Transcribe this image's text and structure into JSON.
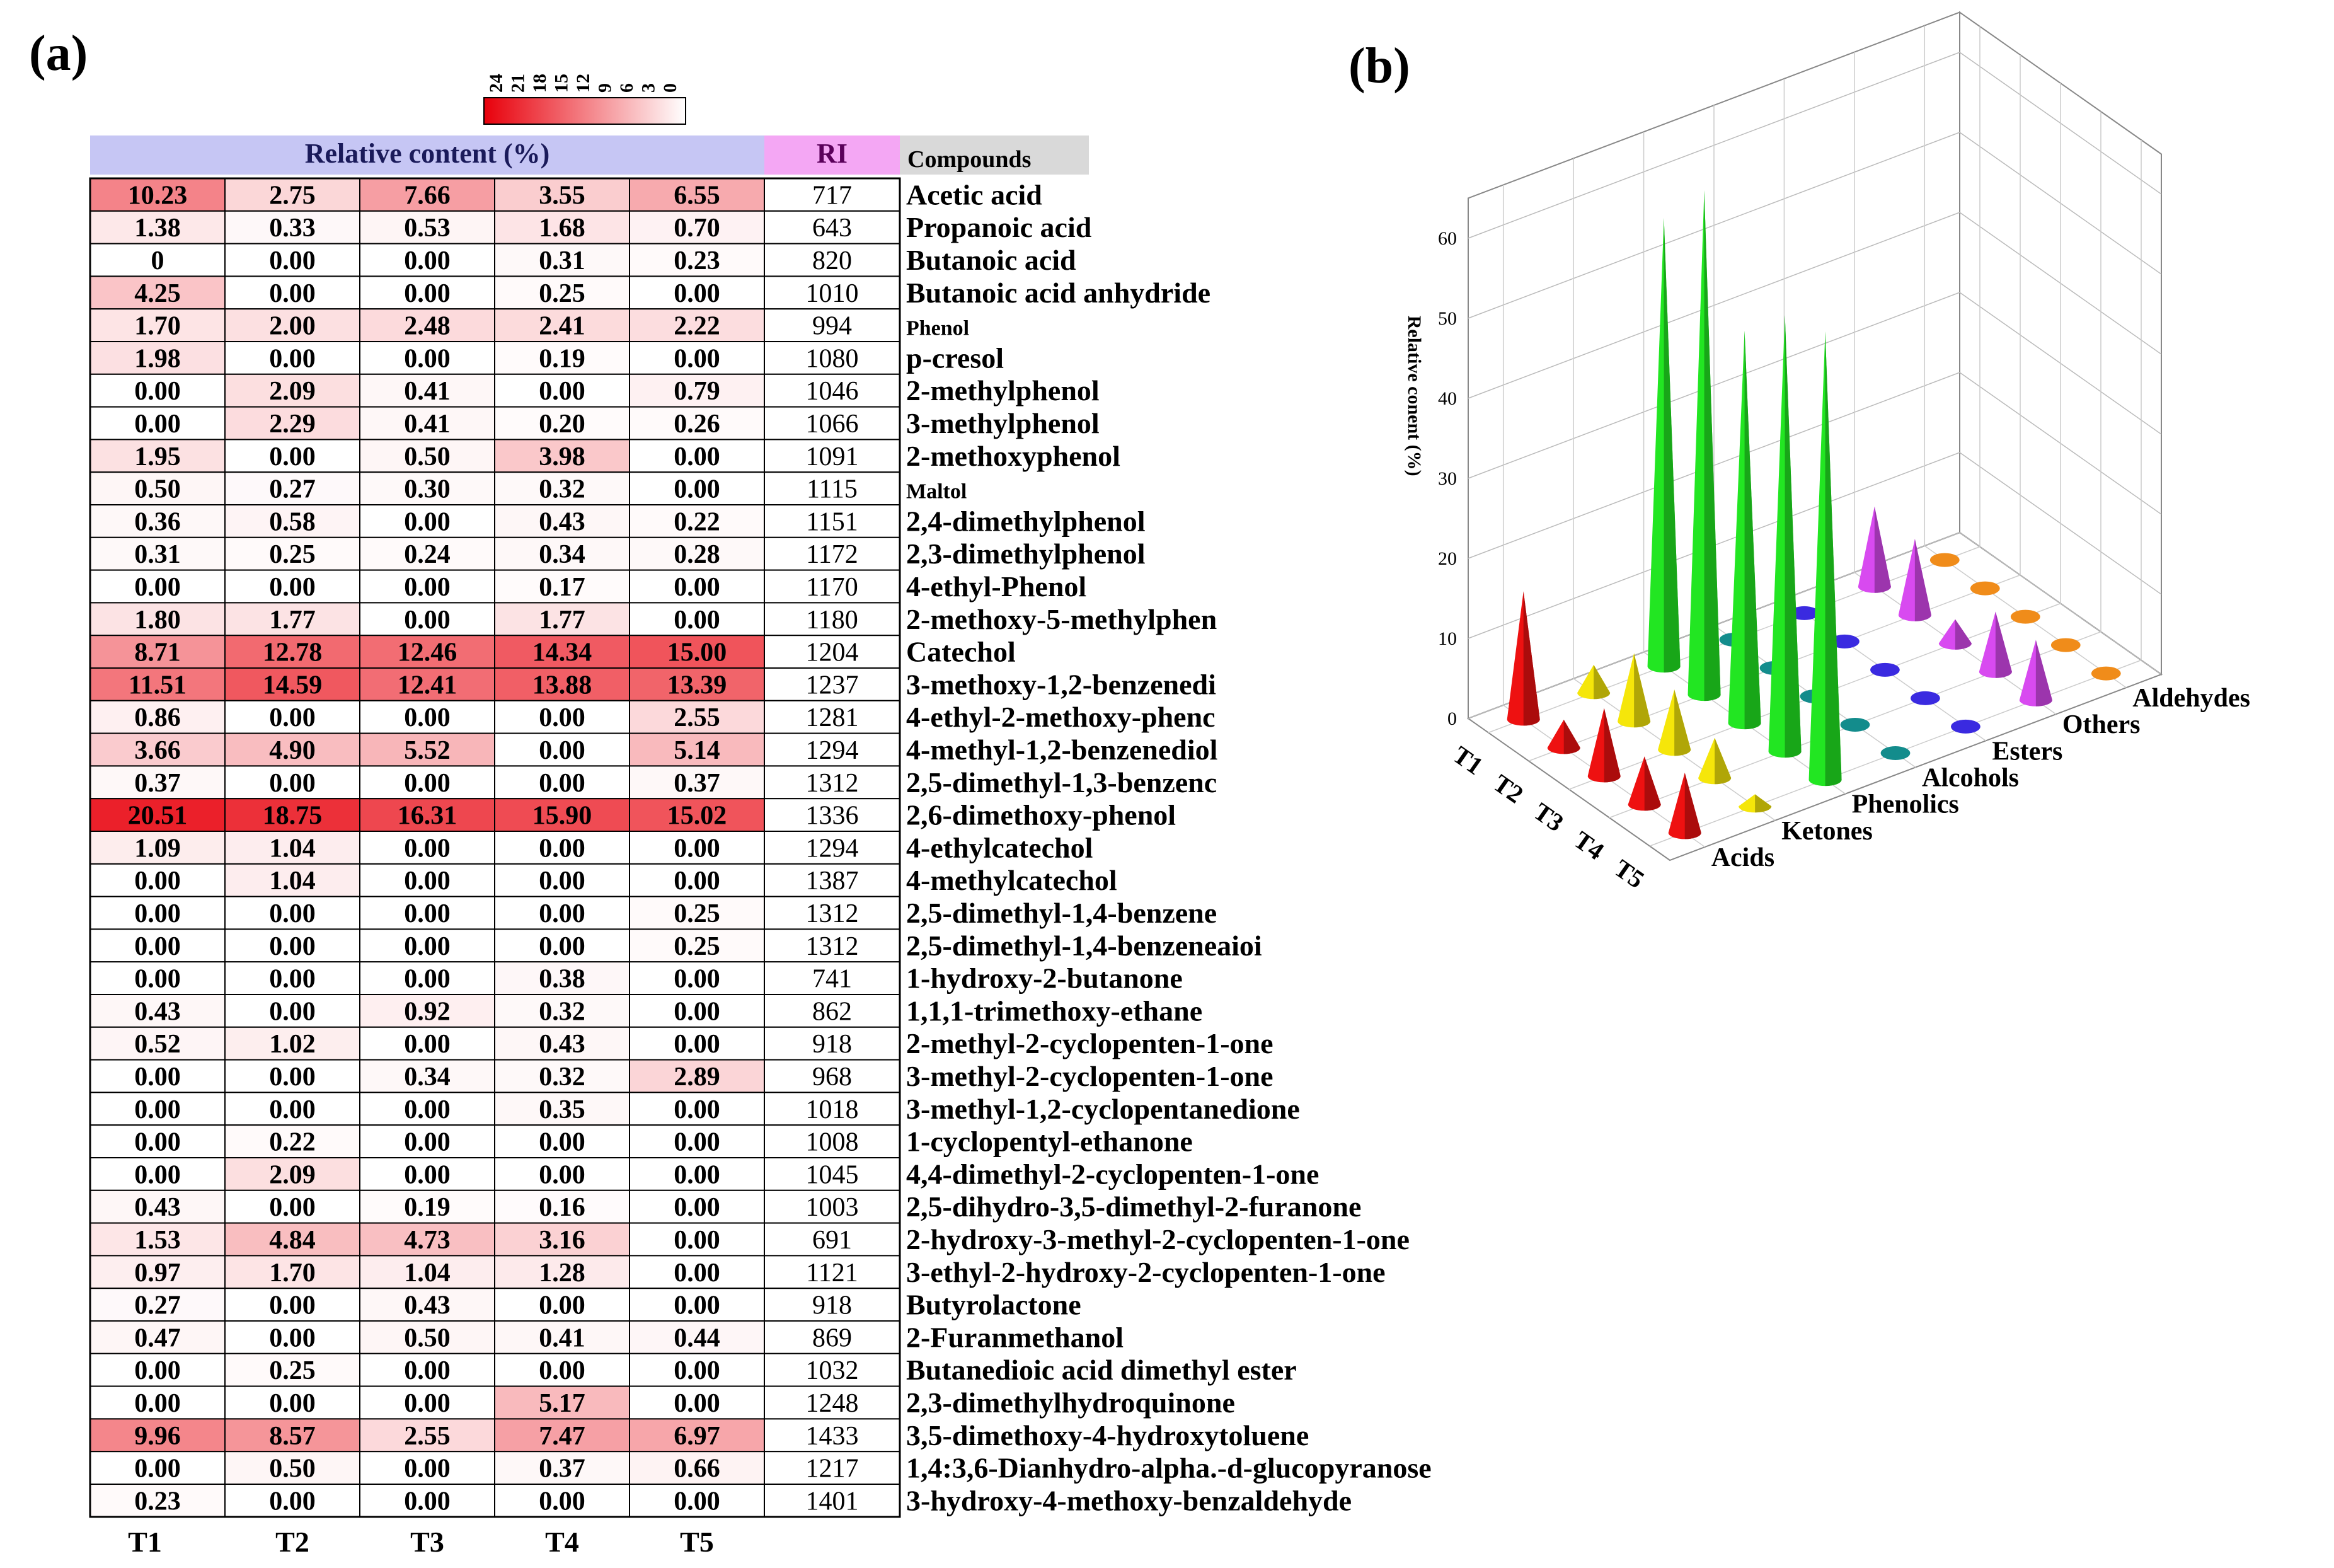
{
  "panel_labels": {
    "a": "(a)",
    "b": "(b)"
  },
  "colors": {
    "heat_high": "#e8000b",
    "heat_low": "#ffffff",
    "header_blue": "#c6c6f4",
    "header_pink": "#f4a7f4",
    "header_gray": "#d9d9d9"
  },
  "chart_data": [
    {
      "type": "heatmap",
      "headers": {
        "relative_content": "Relative content (%)",
        "ri": "RI",
        "compounds": "Compounds"
      },
      "columns": [
        "T1",
        "T2",
        "T3",
        "T4",
        "T5"
      ],
      "colorbar": {
        "ticks": [
          "24",
          "21",
          "18",
          "15",
          "12",
          "9",
          "6",
          "3",
          "0"
        ],
        "range": [
          0,
          24
        ]
      },
      "rows": [
        {
          "compound": "Acetic acid",
          "ri": "717",
          "values": [
            "10.23",
            "2.75",
            "7.66",
            "3.55",
            "6.55"
          ]
        },
        {
          "compound": "Propanoic acid",
          "ri": "643",
          "values": [
            "1.38",
            "0.33",
            "0.53",
            "1.68",
            "0.70"
          ]
        },
        {
          "compound": "Butanoic acid",
          "ri": "820",
          "values": [
            "0",
            "0.00",
            "0.00",
            "0.31",
            "0.23"
          ]
        },
        {
          "compound": "Butanoic acid anhydride",
          "ri": "1010",
          "values": [
            "4.25",
            "0.00",
            "0.00",
            "0.25",
            "0.00"
          ]
        },
        {
          "compound": "Phenol",
          "ri": "994",
          "values": [
            "1.70",
            "2.00",
            "2.48",
            "2.41",
            "2.22"
          ]
        },
        {
          "compound": "p-cresol",
          "ri": "1080",
          "values": [
            "1.98",
            "0.00",
            "0.00",
            "0.19",
            "0.00"
          ]
        },
        {
          "compound": "2-methylphenol",
          "ri": "1046",
          "values": [
            "0.00",
            "2.09",
            "0.41",
            "0.00",
            "0.79"
          ]
        },
        {
          "compound": "3-methylphenol",
          "ri": "1066",
          "values": [
            "0.00",
            "2.29",
            "0.41",
            "0.20",
            "0.26"
          ]
        },
        {
          "compound": "2-methoxyphenol",
          "ri": "1091",
          "values": [
            "1.95",
            "0.00",
            "0.50",
            "3.98",
            "0.00"
          ]
        },
        {
          "compound": "Maltol",
          "ri": "1115",
          "values": [
            "0.50",
            "0.27",
            "0.30",
            "0.32",
            "0.00"
          ]
        },
        {
          "compound": "2,4-dimethylphenol",
          "ri": "1151",
          "values": [
            "0.36",
            "0.58",
            "0.00",
            "0.43",
            "0.22"
          ]
        },
        {
          "compound": "2,3-dimethylphenol",
          "ri": "1172",
          "values": [
            "0.31",
            "0.25",
            "0.24",
            "0.34",
            "0.28"
          ]
        },
        {
          "compound": "4-ethyl-Phenol",
          "ri": "1170",
          "values": [
            "0.00",
            "0.00",
            "0.00",
            "0.17",
            "0.00"
          ]
        },
        {
          "compound": "2-methoxy-5-methylphen",
          "ri": "1180",
          "values": [
            "1.80",
            "1.77",
            "0.00",
            "1.77",
            "0.00"
          ]
        },
        {
          "compound": "Catechol",
          "ri": "1204",
          "values": [
            "8.71",
            "12.78",
            "12.46",
            "14.34",
            "15.00"
          ]
        },
        {
          "compound": "3-methoxy-1,2-benzenedi",
          "ri": "1237",
          "values": [
            "11.51",
            "14.59",
            "12.41",
            "13.88",
            "13.39"
          ]
        },
        {
          "compound": "4-ethyl-2-methoxy-phenc",
          "ri": "1281",
          "values": [
            "0.86",
            "0.00",
            "0.00",
            "0.00",
            "2.55"
          ]
        },
        {
          "compound": "4-methyl-1,2-benzenediol",
          "ri": "1294",
          "values": [
            "3.66",
            "4.90",
            "5.52",
            "0.00",
            "5.14"
          ]
        },
        {
          "compound": "2,5-dimethyl-1,3-benzenc",
          "ri": "1312",
          "values": [
            "0.37",
            "0.00",
            "0.00",
            "0.00",
            "0.37"
          ]
        },
        {
          "compound": "2,6-dimethoxy-phenol",
          "ri": "1336",
          "values": [
            "20.51",
            "18.75",
            "16.31",
            "15.90",
            "15.02"
          ]
        },
        {
          "compound": "4-ethylcatechol",
          "ri": "1294",
          "values": [
            "1.09",
            "1.04",
            "0.00",
            "0.00",
            "0.00"
          ]
        },
        {
          "compound": "4-methylcatechol",
          "ri": "1387",
          "values": [
            "0.00",
            "1.04",
            "0.00",
            "0.00",
            "0.00"
          ]
        },
        {
          "compound": "2,5-dimethyl-1,4-benzene",
          "ri": "1312",
          "values": [
            "0.00",
            "0.00",
            "0.00",
            "0.00",
            "0.25"
          ]
        },
        {
          "compound": "2,5-dimethyl-1,4-benzeneaioi",
          "ri": "1312",
          "values": [
            "0.00",
            "0.00",
            "0.00",
            "0.00",
            "0.25"
          ]
        },
        {
          "compound": "1-hydroxy-2-butanone",
          "ri": "741",
          "values": [
            "0.00",
            "0.00",
            "0.00",
            "0.38",
            "0.00"
          ]
        },
        {
          "compound": "1,1,1-trimethoxy-ethane",
          "ri": "862",
          "values": [
            "0.43",
            "0.00",
            "0.92",
            "0.32",
            "0.00"
          ]
        },
        {
          "compound": "2-methyl-2-cyclopenten-1-one",
          "ri": "918",
          "values": [
            "0.52",
            "1.02",
            "0.00",
            "0.43",
            "0.00"
          ]
        },
        {
          "compound": "3-methyl-2-cyclopenten-1-one",
          "ri": "968",
          "values": [
            "0.00",
            "0.00",
            "0.34",
            "0.32",
            "2.89"
          ]
        },
        {
          "compound": "3-methyl-1,2-cyclopentanedione",
          "ri": "1018",
          "values": [
            "0.00",
            "0.00",
            "0.00",
            "0.35",
            "0.00"
          ]
        },
        {
          "compound": "1-cyclopentyl-ethanone",
          "ri": "1008",
          "values": [
            "0.00",
            "0.22",
            "0.00",
            "0.00",
            "0.00"
          ]
        },
        {
          "compound": "4,4-dimethyl-2-cyclopenten-1-one",
          "ri": "1045",
          "values": [
            "0.00",
            "2.09",
            "0.00",
            "0.00",
            "0.00"
          ]
        },
        {
          "compound": "2,5-dihydro-3,5-dimethyl-2-furanone",
          "ri": "1003",
          "values": [
            "0.43",
            "0.00",
            "0.19",
            "0.16",
            "0.00"
          ]
        },
        {
          "compound": "2-hydroxy-3-methyl-2-cyclopenten-1-one",
          "ri": "691",
          "values": [
            "1.53",
            "4.84",
            "4.73",
            "3.16",
            "0.00"
          ]
        },
        {
          "compound": "3-ethyl-2-hydroxy-2-cyclopenten-1-one",
          "ri": "1121",
          "values": [
            "0.97",
            "1.70",
            "1.04",
            "1.28",
            "0.00"
          ]
        },
        {
          "compound": "Butyrolactone",
          "ri": "918",
          "values": [
            "0.27",
            "0.00",
            "0.43",
            "0.00",
            "0.00"
          ]
        },
        {
          "compound": "2-Furanmethanol",
          "ri": "869",
          "values": [
            "0.47",
            "0.00",
            "0.50",
            "0.41",
            "0.44"
          ]
        },
        {
          "compound": "Butanedioic acid dimethyl ester",
          "ri": "1032",
          "values": [
            "0.00",
            "0.25",
            "0.00",
            "0.00",
            "0.00"
          ]
        },
        {
          "compound": "2,3-dimethylhydroquinone",
          "ri": "1248",
          "values": [
            "0.00",
            "0.00",
            "0.00",
            "5.17",
            "0.00"
          ]
        },
        {
          "compound": "3,5-dimethoxy-4-hydroxytoluene",
          "ri": "1433",
          "values": [
            "9.96",
            "8.57",
            "2.55",
            "7.47",
            "6.97"
          ]
        },
        {
          "compound": "1,4:3,6-Dianhydro-alpha.-d-glucopyranose",
          "ri": "1217",
          "values": [
            "0.00",
            "0.50",
            "0.00",
            "0.37",
            "0.66"
          ]
        },
        {
          "compound": "3-hydroxy-4-methoxy-benzaldehyde",
          "ri": "1401",
          "values": [
            "0.23",
            "0.00",
            "0.00",
            "0.00",
            "0.00"
          ]
        }
      ]
    },
    {
      "type": "bar3d",
      "zlabel": "Relative conent (%)",
      "z_ticks": [
        "0",
        "10",
        "20",
        "30",
        "40",
        "50",
        "60"
      ],
      "zlim": [
        0,
        65
      ],
      "x_categories": [
        "T1",
        "T2",
        "T3",
        "T4",
        "T5"
      ],
      "y_categories": [
        "Acids",
        "Ketones",
        "Phenolics",
        "Alcohols",
        "Esters",
        "Others",
        "Aldehydes"
      ],
      "series_colors": {
        "Acids": "#ee1111",
        "Ketones": "#f5e60a",
        "Phenolics": "#22e622",
        "Alcohols": "#138c8c",
        "Esters": "#3a2ae0",
        "Others": "#d84af0",
        "Aldehydes": "#f08c1a"
      },
      "values": {
        "Acids": [
          16.0,
          3.5,
          8.5,
          6.0,
          7.5
        ],
        "Ketones": [
          3.5,
          8.5,
          7.5,
          5.0,
          1.5
        ],
        "Phenolics": [
          56.0,
          63.0,
          49.0,
          54.5,
          56.0
        ],
        "Alcohols": [
          0.5,
          0.0,
          0.5,
          0.4,
          0.4
        ],
        "Esters": [
          0.3,
          0.3,
          0.0,
          0.0,
          0.0
        ],
        "Others": [
          10.0,
          9.5,
          3.0,
          7.5,
          7.5
        ],
        "Aldehydes": [
          0.2,
          0.0,
          0.0,
          0.0,
          0.0
        ]
      }
    }
  ]
}
